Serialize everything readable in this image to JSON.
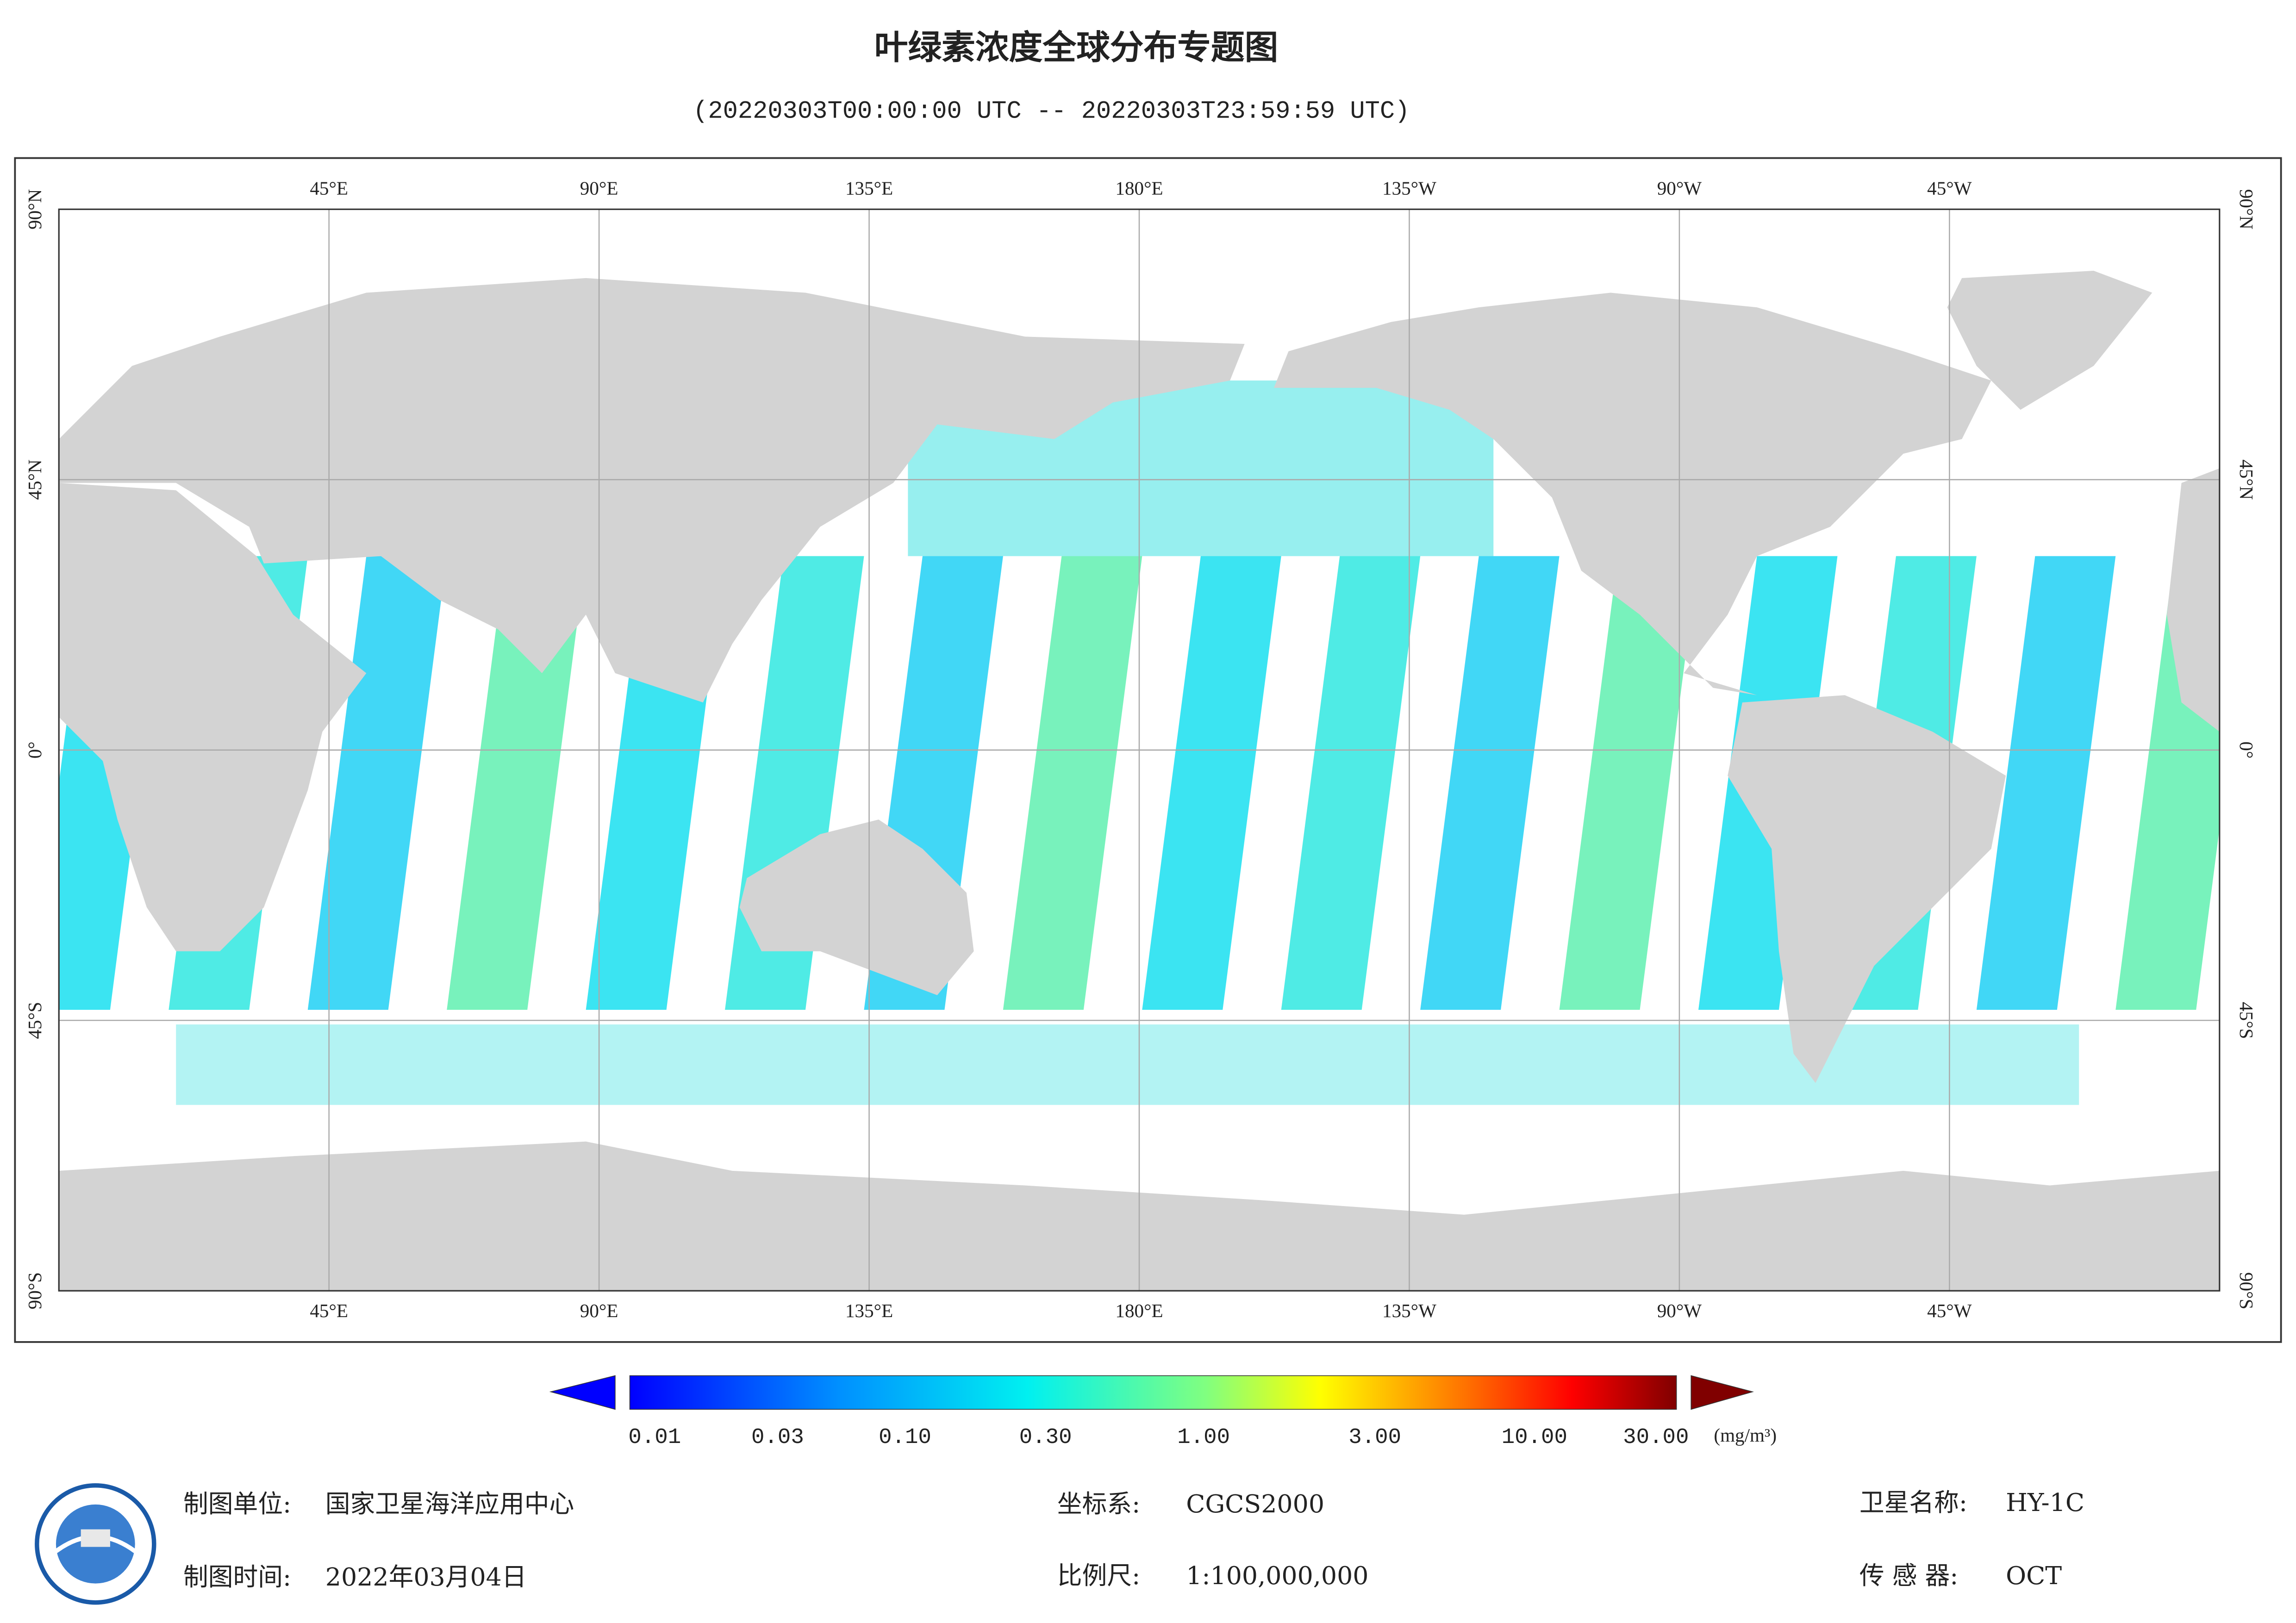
{
  "header": {
    "title": "叶绿素浓度全球分布专题图",
    "subtitle": "(20220303T00:00:00 UTC -- 20220303T23:59:59 UTC)"
  },
  "map": {
    "lon_labels": [
      "45°E",
      "90°E",
      "135°E",
      "180°E",
      "135°W",
      "90°W",
      "45°W"
    ],
    "lat_labels": [
      "90°N",
      "45°N",
      "0°",
      "45°S",
      "90°S"
    ]
  },
  "colorbar": {
    "ticks": [
      "0.01",
      "0.03",
      "0.10",
      "0.30",
      "1.00",
      "3.00",
      "10.00",
      "30.00"
    ],
    "unit": "(mg/m³)"
  },
  "footer": {
    "unit_label": "制图单位:",
    "unit": "国家卫星海洋应用中心",
    "time_label": "制图时间:",
    "time": "2022年03月04日",
    "crs_label": "坐标系:",
    "crs": "CGCS2000",
    "scale_label": "比例尺:",
    "scale": "1:100,000,000",
    "satellite_label": "卫星名称:",
    "satellite": "HY-1C",
    "sensor_label": "传 感 器:",
    "sensor": "OCT"
  }
}
